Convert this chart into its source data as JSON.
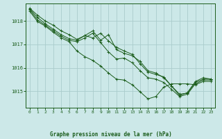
{
  "title": "Graphe pression niveau de la mer (hPa)",
  "bg_color": "#cce8e8",
  "grid_color": "#aacccc",
  "line_color": "#1a5c1a",
  "xlim": [
    -0.5,
    23.5
  ],
  "ylim": [
    1014.3,
    1018.75
  ],
  "yticks": [
    1015,
    1016,
    1017,
    1018
  ],
  "xticks": [
    0,
    1,
    2,
    3,
    4,
    5,
    6,
    7,
    8,
    9,
    10,
    11,
    12,
    13,
    14,
    15,
    16,
    17,
    18,
    19,
    20,
    21,
    22,
    23
  ],
  "series": [
    [
      1018.55,
      1018.25,
      1018.0,
      1017.82,
      1017.58,
      1017.42,
      1017.22,
      1017.38,
      1017.28,
      1017.48,
      1017.15,
      1016.88,
      1016.72,
      1016.58,
      1016.18,
      1015.82,
      1015.72,
      1015.62,
      1015.22,
      1014.82,
      1014.95,
      1015.42,
      1015.58,
      1015.52
    ],
    [
      1018.52,
      1018.15,
      1017.88,
      1017.65,
      1017.42,
      1017.25,
      1017.18,
      1017.38,
      1017.58,
      1017.18,
      1017.42,
      1016.78,
      1016.62,
      1016.52,
      1016.28,
      1015.88,
      1015.78,
      1015.58,
      1015.22,
      1014.88,
      1014.92,
      1015.38,
      1015.52,
      1015.52
    ],
    [
      1018.48,
      1018.05,
      1017.82,
      1017.58,
      1017.35,
      1017.18,
      1017.12,
      1017.28,
      1017.48,
      1017.08,
      1016.68,
      1016.38,
      1016.42,
      1016.22,
      1015.88,
      1015.58,
      1015.52,
      1015.38,
      1015.08,
      1014.78,
      1014.88,
      1015.32,
      1015.48,
      1015.48
    ],
    [
      1018.42,
      1017.98,
      1017.78,
      1017.52,
      1017.28,
      1017.12,
      1016.72,
      1016.48,
      1016.32,
      1016.08,
      1015.78,
      1015.52,
      1015.48,
      1015.28,
      1014.98,
      1014.68,
      1014.78,
      1015.18,
      1015.32,
      1015.32,
      1015.32,
      1015.28,
      1015.42,
      1015.42
    ]
  ]
}
